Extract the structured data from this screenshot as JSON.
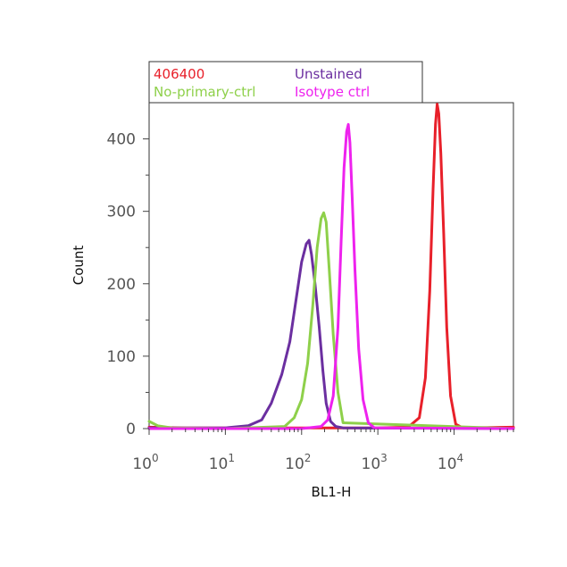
{
  "chart_data": {
    "type": "line",
    "xlabel": "BL1-H",
    "ylabel": "Count",
    "xscale": "log",
    "xlim": [
      1,
      60000
    ],
    "ylim": [
      0,
      450
    ],
    "x_ticks": [
      {
        "value": 1,
        "base": "10",
        "exp": "0"
      },
      {
        "value": 10,
        "base": "10",
        "exp": "1"
      },
      {
        "value": 100,
        "base": "10",
        "exp": "2"
      },
      {
        "value": 1000,
        "base": "10",
        "exp": "3"
      },
      {
        "value": 10000,
        "base": "10",
        "exp": "4"
      }
    ],
    "y_ticks": [
      0,
      100,
      200,
      300,
      400
    ],
    "legend_position": "top-left, above plot",
    "series": [
      {
        "name": "406400",
        "color": "#e8202a",
        "x": [
          1,
          3,
          10,
          100,
          1000,
          2500,
          3500,
          4200,
          4800,
          5300,
          5700,
          6000,
          6300,
          6700,
          7300,
          8000,
          9000,
          10500,
          13000,
          60000
        ],
        "y": [
          2,
          1,
          1,
          1,
          1,
          2,
          15,
          70,
          190,
          330,
          420,
          448,
          435,
          380,
          270,
          140,
          45,
          6,
          1,
          2
        ]
      },
      {
        "name": "Unstained",
        "color": "#6b2fa0",
        "x": [
          1,
          10,
          20,
          30,
          40,
          55,
          70,
          85,
          100,
          115,
          125,
          135,
          150,
          170,
          190,
          210,
          240,
          280,
          350,
          60000
        ],
        "y": [
          1,
          1,
          4,
          12,
          35,
          75,
          120,
          180,
          230,
          255,
          260,
          240,
          200,
          140,
          80,
          35,
          10,
          3,
          1,
          0
        ]
      },
      {
        "name": "No-primary-ctrl",
        "color": "#8ed04a",
        "x": [
          1,
          1.3,
          2,
          10,
          60,
          80,
          100,
          120,
          140,
          160,
          180,
          195,
          210,
          230,
          260,
          300,
          350,
          60000
        ],
        "y": [
          10,
          4,
          1,
          0,
          3,
          15,
          40,
          90,
          170,
          250,
          290,
          298,
          285,
          220,
          130,
          50,
          8,
          0
        ]
      },
      {
        "name": "Isotype ctrl",
        "color": "#ee22ee",
        "x": [
          1,
          10,
          100,
          180,
          220,
          260,
          300,
          330,
          360,
          390,
          410,
          430,
          460,
          500,
          560,
          640,
          750,
          900,
          60000
        ],
        "y": [
          0,
          0,
          0,
          3,
          12,
          45,
          140,
          260,
          360,
          410,
          420,
          395,
          320,
          220,
          110,
          40,
          8,
          1,
          0
        ]
      }
    ]
  }
}
